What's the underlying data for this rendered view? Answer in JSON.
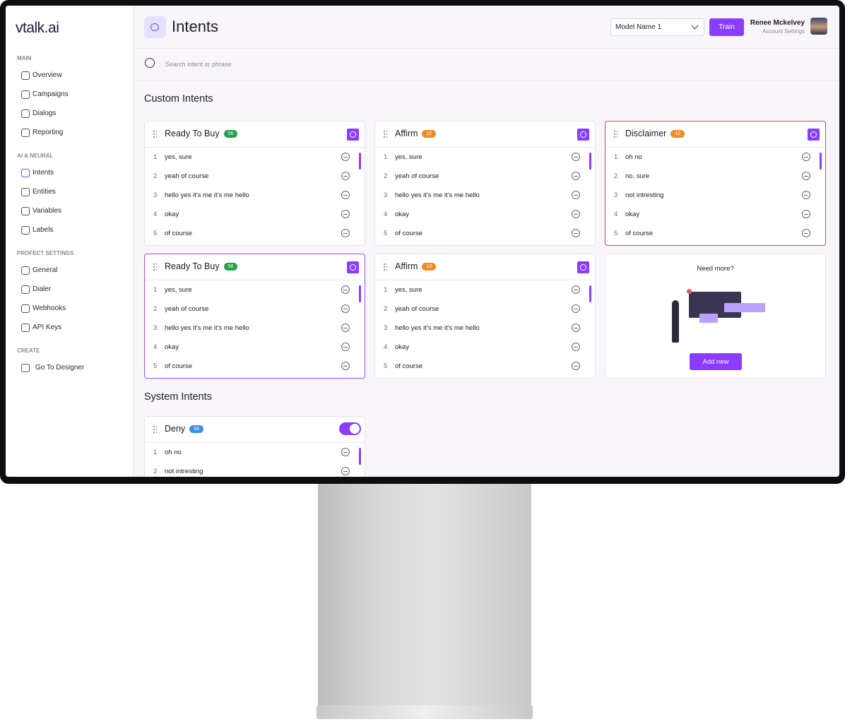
{
  "sidebar": {
    "logo": "vtalk.ai",
    "sections": [
      {
        "title": "MAIN",
        "items": [
          "Overview",
          "Campaigns",
          "Dialogs",
          "Reporting"
        ]
      },
      {
        "title": "AI & NEURAL",
        "items": [
          "Intents",
          "Entities",
          "Variables",
          "Labels"
        ]
      },
      {
        "title": "PROFECT SETTINGS",
        "items": [
          "General",
          "Dialer",
          "Webhooks",
          "API Keys"
        ]
      },
      {
        "title": "CREATE",
        "items": [
          "Go To Designer"
        ]
      }
    ],
    "active_item": "Intents"
  },
  "header": {
    "title": "Intents",
    "model_select": "Model Name 1",
    "train_button": "Train",
    "user_name": "Renee Mckelvey",
    "user_subtitle": "Account Settings"
  },
  "search_placeholder": "Search intent or phrase",
  "custom_intents": {
    "title": "Custom Intents",
    "cards": [
      {
        "name": "Ready To Buy",
        "count": 56,
        "badge_color": "#22a04a",
        "border_color": "#e6e3ec",
        "phrases": [
          {
            "n": 1,
            "text": "yes, sure"
          },
          {
            "n": 2,
            "text": "yeah of course"
          },
          {
            "n": 3,
            "text": "hello yes it's me it's me hello"
          },
          {
            "n": 4,
            "text": "okay"
          },
          {
            "n": 5,
            "text": "of course"
          }
        ]
      },
      {
        "name": "Affirm",
        "count": 12,
        "badge_color": "#f08a24",
        "border_color": "#e6e3ec",
        "phrases": [
          {
            "n": 1,
            "text": "yes, sure"
          },
          {
            "n": 2,
            "text": "yeah of course"
          },
          {
            "n": 3,
            "text": "hello yes it's me it's me hello"
          },
          {
            "n": 4,
            "text": "okay"
          },
          {
            "n": 5,
            "text": "of course"
          }
        ]
      },
      {
        "name": "Disclaimer",
        "count": 12,
        "badge_color": "#f08a24",
        "border_color": "#e8473f",
        "phrases": [
          {
            "n": 1,
            "text": "oh no"
          },
          {
            "n": 2,
            "text": "no, sure"
          },
          {
            "n": 3,
            "text": "not intresting"
          },
          {
            "n": 4,
            "text": "okay"
          },
          {
            "n": 5,
            "text": "of course"
          }
        ]
      },
      {
        "name": "Ready To Buy",
        "count": 56,
        "badge_color": "#22a04a",
        "border_color": "#9b4dff",
        "phrases": [
          {
            "n": 1,
            "text": "yes, sure"
          },
          {
            "n": 2,
            "text": "yeah of course"
          },
          {
            "n": 3,
            "text": "hello yes it's me it's me hello"
          },
          {
            "n": 4,
            "text": "okay"
          },
          {
            "n": 5,
            "text": "of course"
          }
        ]
      },
      {
        "name": "Affirm",
        "count": 12,
        "badge_color": "#f08a24",
        "border_color": "#e6e3ec",
        "phrases": [
          {
            "n": 1,
            "text": "yes, sure"
          },
          {
            "n": 2,
            "text": "yeah of course"
          },
          {
            "n": 3,
            "text": "hello yes it's me it's me hello"
          },
          {
            "n": 4,
            "text": "okay"
          },
          {
            "n": 5,
            "text": "of course"
          }
        ]
      }
    ]
  },
  "promo": {
    "title": "Need more?",
    "button": "Add new"
  },
  "system_intents": {
    "title": "System Intents",
    "cards": [
      {
        "name": "Deny",
        "count": 56,
        "badge_color": "#3b8fe0",
        "border_color": "#e6e3ec",
        "toggle": true,
        "phrases": [
          {
            "n": 1,
            "text": "oh no"
          },
          {
            "n": 2,
            "text": "not intresting"
          }
        ]
      }
    ]
  }
}
